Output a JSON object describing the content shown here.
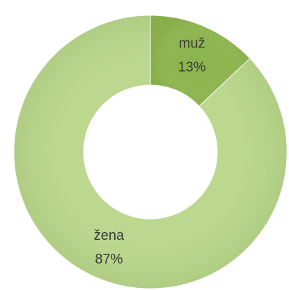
{
  "chart_data": {
    "type": "donut",
    "categories": [
      "muž",
      "žena"
    ],
    "values": [
      13,
      87
    ],
    "value_labels": [
      "13%",
      "87%"
    ],
    "colors": [
      "#8db54f",
      "#bbd88e"
    ]
  }
}
